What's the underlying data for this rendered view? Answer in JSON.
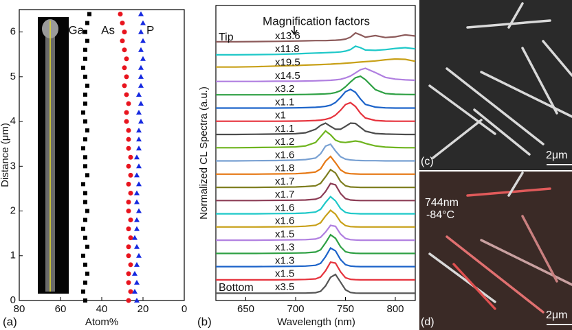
{
  "chart_data": [
    {
      "type": "scatter",
      "panel_label": "(a)",
      "x_label": "Atom%",
      "y_label": "Distance (μm)",
      "xlim": [
        80,
        0
      ],
      "xticks": [
        80,
        60,
        40,
        20,
        0
      ],
      "ylim": [
        0,
        6.5
      ],
      "yticks": [
        0,
        1,
        2,
        3,
        4,
        5,
        6
      ],
      "series": [
        {
          "name": "Ga",
          "color": "#000000",
          "marker": "square",
          "x": [
            48,
            49,
            48,
            47,
            48,
            49,
            47,
            48,
            49,
            48,
            47,
            48,
            48,
            49,
            47,
            48,
            48,
            49,
            48,
            47,
            48,
            49,
            48,
            48,
            47,
            48,
            49,
            48,
            48,
            47,
            48,
            47,
            46
          ],
          "y": [
            0,
            0.2,
            0.4,
            0.6,
            0.8,
            1,
            1.2,
            1.4,
            1.6,
            1.8,
            2,
            2.2,
            2.4,
            2.6,
            2.8,
            3,
            3.2,
            3.4,
            3.6,
            3.8,
            4,
            4.2,
            4.4,
            4.6,
            4.8,
            5,
            5.2,
            5.4,
            5.6,
            5.8,
            6,
            6.2,
            6.4
          ]
        },
        {
          "name": "As",
          "color": "#e8141e",
          "marker": "circle",
          "x": [
            27,
            26,
            27,
            27,
            26,
            27,
            27,
            26,
            27,
            26,
            27,
            27,
            26,
            27,
            26,
            27,
            26,
            27,
            27,
            27,
            28,
            28,
            27,
            28,
            29,
            28,
            29,
            28,
            29,
            30,
            29,
            30,
            31
          ],
          "y": [
            0,
            0.2,
            0.4,
            0.6,
            0.8,
            1,
            1.2,
            1.4,
            1.6,
            1.8,
            2,
            2.2,
            2.4,
            2.6,
            2.8,
            3,
            3.2,
            3.4,
            3.6,
            3.8,
            4,
            4.2,
            4.4,
            4.6,
            4.8,
            5,
            5.2,
            5.4,
            5.6,
            5.8,
            6,
            6.2,
            6.4
          ]
        },
        {
          "name": "P",
          "color": "#1428e0",
          "marker": "triangle",
          "x": [
            23,
            24,
            23,
            24,
            23,
            22,
            23,
            24,
            23,
            23,
            22,
            23,
            23,
            22,
            23,
            22,
            23,
            22,
            22,
            22,
            21,
            22,
            21,
            22,
            21,
            21,
            21,
            20,
            21,
            20,
            21,
            20,
            21
          ],
          "y": [
            0,
            0.2,
            0.4,
            0.6,
            0.8,
            1,
            1.2,
            1.4,
            1.6,
            1.8,
            2,
            2.2,
            2.4,
            2.6,
            2.8,
            3,
            3.2,
            3.4,
            3.6,
            3.8,
            4,
            4.2,
            4.4,
            4.6,
            4.8,
            5,
            5.2,
            5.4,
            5.6,
            5.8,
            6,
            6.2,
            6.4
          ]
        }
      ]
    },
    {
      "type": "line",
      "panel_label": "(b)",
      "title": "Magnification factors",
      "x_label": "Wavelength (nm)",
      "y_label": "Normalized CL Spectra (a.u.)",
      "top_annotation": "Tip",
      "bottom_annotation": "Bottom",
      "xlim": [
        620,
        820
      ],
      "xticks": [
        650,
        700,
        750,
        800
      ],
      "x": [
        620,
        640,
        660,
        680,
        700,
        710,
        720,
        725,
        730,
        735,
        740,
        745,
        750,
        755,
        760,
        765,
        770,
        780,
        790,
        800,
        810,
        820
      ],
      "series": [
        {
          "name": "x3.5",
          "color": "#555555",
          "values": [
            0.02,
            0.02,
            0.02,
            0.02,
            0.03,
            0.03,
            0.05,
            0.12,
            0.4,
            0.85,
            1,
            0.6,
            0.2,
            0.06,
            0.03,
            0.02,
            0.02,
            0.02,
            0.02,
            0.02,
            0.02,
            0.02
          ]
        },
        {
          "name": "x1.5",
          "color": "#e6323c",
          "values": [
            0.03,
            0.03,
            0.03,
            0.03,
            0.04,
            0.05,
            0.08,
            0.18,
            0.5,
            0.95,
            0.9,
            0.45,
            0.14,
            0.06,
            0.04,
            0.03,
            0.03,
            0.03,
            0.03,
            0.03,
            0.03,
            0.03
          ]
        },
        {
          "name": "x1.3",
          "color": "#1c63c9",
          "values": [
            0.03,
            0.03,
            0.03,
            0.04,
            0.05,
            0.06,
            0.1,
            0.2,
            0.55,
            1,
            0.85,
            0.4,
            0.13,
            0.06,
            0.04,
            0.03,
            0.03,
            0.03,
            0.03,
            0.03,
            0.03,
            0.03
          ]
        },
        {
          "name": "x1.3",
          "color": "#2ea043",
          "values": [
            0.03,
            0.03,
            0.03,
            0.04,
            0.05,
            0.06,
            0.1,
            0.22,
            0.58,
            1,
            0.82,
            0.38,
            0.12,
            0.06,
            0.04,
            0.03,
            0.03,
            0.03,
            0.03,
            0.03,
            0.03,
            0.03
          ]
        },
        {
          "name": "x1.5",
          "color": "#b07fe0",
          "values": [
            0.03,
            0.03,
            0.03,
            0.04,
            0.05,
            0.06,
            0.09,
            0.18,
            0.45,
            0.8,
            0.75,
            0.35,
            0.12,
            0.06,
            0.04,
            0.03,
            0.03,
            0.03,
            0.03,
            0.03,
            0.03,
            0.03
          ]
        },
        {
          "name": "x1.6",
          "color": "#c8a018",
          "values": [
            0.03,
            0.03,
            0.03,
            0.04,
            0.05,
            0.07,
            0.12,
            0.25,
            0.6,
            0.9,
            0.7,
            0.3,
            0.1,
            0.05,
            0.04,
            0.03,
            0.03,
            0.03,
            0.03,
            0.03,
            0.03,
            0.03
          ]
        },
        {
          "name": "x1.6",
          "color": "#1ec8c8",
          "values": [
            0.03,
            0.03,
            0.03,
            0.04,
            0.05,
            0.07,
            0.12,
            0.26,
            0.62,
            0.92,
            0.7,
            0.3,
            0.1,
            0.05,
            0.04,
            0.03,
            0.03,
            0.03,
            0.03,
            0.03,
            0.03,
            0.03
          ]
        },
        {
          "name": "x1.7",
          "color": "#8c3c55",
          "values": [
            0.03,
            0.03,
            0.03,
            0.04,
            0.05,
            0.06,
            0.1,
            0.2,
            0.5,
            0.92,
            0.85,
            0.4,
            0.13,
            0.06,
            0.04,
            0.03,
            0.03,
            0.03,
            0.03,
            0.03,
            0.03,
            0.03
          ]
        },
        {
          "name": "x1.7",
          "color": "#7d7d1e",
          "values": [
            0.03,
            0.03,
            0.03,
            0.04,
            0.05,
            0.07,
            0.11,
            0.24,
            0.58,
            0.95,
            0.78,
            0.34,
            0.11,
            0.05,
            0.04,
            0.03,
            0.03,
            0.03,
            0.03,
            0.03,
            0.03,
            0.03
          ]
        },
        {
          "name": "x1.8",
          "color": "#e67814",
          "values": [
            0.03,
            0.03,
            0.03,
            0.04,
            0.05,
            0.08,
            0.14,
            0.3,
            0.7,
            0.95,
            0.62,
            0.25,
            0.09,
            0.05,
            0.04,
            0.03,
            0.03,
            0.03,
            0.03,
            0.03,
            0.03,
            0.03
          ]
        },
        {
          "name": "x1.6",
          "color": "#78a0d2",
          "values": [
            0.03,
            0.03,
            0.04,
            0.05,
            0.07,
            0.1,
            0.18,
            0.4,
            0.8,
            0.9,
            0.55,
            0.25,
            0.12,
            0.08,
            0.06,
            0.05,
            0.04,
            0.04,
            0.03,
            0.03,
            0.03,
            0.03
          ]
        },
        {
          "name": "x1.2",
          "color": "#6eb41e",
          "values": [
            0.03,
            0.03,
            0.04,
            0.05,
            0.07,
            0.12,
            0.3,
            0.6,
            0.9,
            0.7,
            0.42,
            0.32,
            0.3,
            0.34,
            0.38,
            0.34,
            0.25,
            0.12,
            0.06,
            0.04,
            0.03,
            0.03
          ]
        },
        {
          "name": "x1.1",
          "color": "#4b4b4b",
          "values": [
            0.03,
            0.03,
            0.04,
            0.05,
            0.07,
            0.12,
            0.3,
            0.5,
            0.62,
            0.45,
            0.3,
            0.3,
            0.45,
            0.62,
            0.6,
            0.4,
            0.2,
            0.08,
            0.05,
            0.04,
            0.03,
            0.03
          ]
        },
        {
          "name": "x1",
          "color": "#e6323c",
          "values": [
            0.03,
            0.03,
            0.03,
            0.03,
            0.04,
            0.05,
            0.07,
            0.09,
            0.13,
            0.2,
            0.35,
            0.6,
            0.9,
            1,
            0.8,
            0.45,
            0.2,
            0.07,
            0.04,
            0.03,
            0.03,
            0.03
          ]
        },
        {
          "name": "x1.1",
          "color": "#1c63c9",
          "values": [
            0.03,
            0.03,
            0.03,
            0.03,
            0.04,
            0.05,
            0.07,
            0.09,
            0.12,
            0.18,
            0.32,
            0.58,
            0.88,
            1,
            0.85,
            0.5,
            0.22,
            0.08,
            0.04,
            0.03,
            0.03,
            0.03
          ]
        },
        {
          "name": "x3.2",
          "color": "#2ea043",
          "values": [
            0.03,
            0.03,
            0.03,
            0.03,
            0.04,
            0.05,
            0.06,
            0.07,
            0.08,
            0.1,
            0.15,
            0.25,
            0.45,
            0.7,
            0.92,
            1,
            0.82,
            0.3,
            0.1,
            0.06,
            0.05,
            0.04
          ]
        },
        {
          "name": "x14.5",
          "color": "#b07fe0",
          "values": [
            0.04,
            0.04,
            0.04,
            0.05,
            0.05,
            0.06,
            0.07,
            0.08,
            0.09,
            0.1,
            0.12,
            0.15,
            0.22,
            0.32,
            0.48,
            0.65,
            0.72,
            0.5,
            0.25,
            0.16,
            0.12,
            0.1
          ]
        },
        {
          "name": "x19.5",
          "color": "#c8a018",
          "values": [
            0.1,
            0.1,
            0.12,
            0.15,
            0.18,
            0.2,
            0.22,
            0.23,
            0.24,
            0.25,
            0.27,
            0.28,
            0.3,
            0.32,
            0.34,
            0.36,
            0.38,
            0.42,
            0.48,
            0.52,
            0.5,
            0.4
          ]
        },
        {
          "name": "x11.8",
          "color": "#1ec8c8",
          "values": [
            0.05,
            0.05,
            0.06,
            0.07,
            0.1,
            0.12,
            0.14,
            0.15,
            0.16,
            0.17,
            0.18,
            0.2,
            0.24,
            0.32,
            0.5,
            0.42,
            0.3,
            0.28,
            0.32,
            0.38,
            0.42,
            0.36
          ]
        },
        {
          "name": "x13.6",
          "color": "#8c5a5a",
          "values": [
            0.04,
            0.04,
            0.05,
            0.06,
            0.08,
            0.09,
            0.1,
            0.1,
            0.1,
            0.11,
            0.12,
            0.14,
            0.18,
            0.28,
            0.5,
            0.4,
            0.28,
            0.36,
            0.26,
            0.3,
            0.4,
            0.34
          ]
        }
      ]
    }
  ],
  "images": [
    {
      "label": "(c)",
      "scale_bar": "2μm"
    },
    {
      "label": "(d)",
      "scale_bar": "2μm",
      "annotations": [
        "744nm",
        "-84°C"
      ]
    }
  ]
}
